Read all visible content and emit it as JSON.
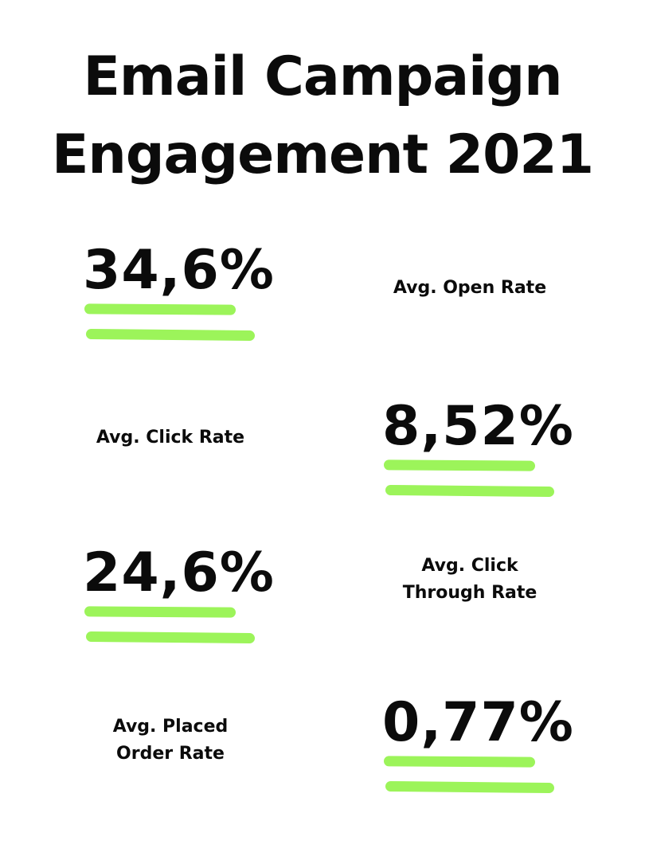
{
  "title": {
    "line1": "Email Campaign",
    "line2": "Engagement 2021"
  },
  "accent_color": "#9cf45a",
  "stats": [
    {
      "value": "34,6%",
      "label_line1": "Avg. Open Rate",
      "label_line2": ""
    },
    {
      "value": "8,52%",
      "label_line1": "Avg. Click Rate",
      "label_line2": ""
    },
    {
      "value": "24,6%",
      "label_line1": "Avg. Click",
      "label_line2": "Through Rate"
    },
    {
      "value": "0,77%",
      "label_line1": "Avg. Placed",
      "label_line2": "Order Rate"
    }
  ]
}
